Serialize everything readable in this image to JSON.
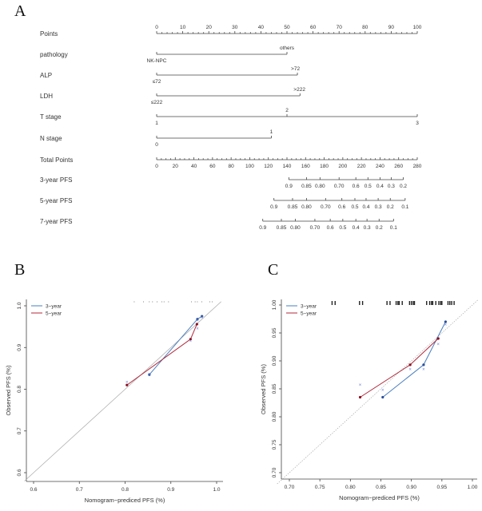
{
  "panels": {
    "a": "A",
    "b": "B",
    "c": "C"
  },
  "chart_data": [
    {
      "type": "nomogram",
      "points_axis": {
        "label": "Points",
        "min": 0,
        "max": 100,
        "ticks": [
          0,
          10,
          20,
          30,
          40,
          50,
          60,
          70,
          80,
          90,
          100
        ]
      },
      "variables": [
        {
          "label": "pathology",
          "levels": [
            {
              "name": "NK-NPC",
              "points": 0
            },
            {
              "name": "others",
              "points": 50
            }
          ]
        },
        {
          "label": "ALP",
          "levels": [
            {
              "name": "≤72",
              "points": 0
            },
            {
              "name": ">72",
              "points": 54
            }
          ]
        },
        {
          "label": "LDH",
          "levels": [
            {
              "name": "≤222",
              "points": 0
            },
            {
              "name": ">222",
              "points": 55
            }
          ]
        },
        {
          "label": "T stage",
          "levels": [
            {
              "name": "1",
              "points": 0
            },
            {
              "name": "2",
              "points": 50
            },
            {
              "name": "3",
              "points": 100
            }
          ]
        },
        {
          "label": "N stage",
          "levels": [
            {
              "name": "0",
              "points": 0
            },
            {
              "name": "1",
              "points": 44
            }
          ]
        }
      ],
      "total_points_axis": {
        "label": "Total Points",
        "min": 0,
        "max": 280,
        "ticks": [
          0,
          20,
          40,
          60,
          80,
          100,
          120,
          140,
          160,
          180,
          200,
          220,
          240,
          260,
          280
        ]
      },
      "outcome_axes": [
        {
          "label": "3-year PFS",
          "ticks": [
            {
              "value": "0.9",
              "total": 142
            },
            {
              "value": "0.85",
              "total": 161
            },
            {
              "value": "0.80",
              "total": 175.5
            },
            {
              "value": "0.70",
              "total": 196
            },
            {
              "value": "0.6",
              "total": 214
            },
            {
              "value": "0.5",
              "total": 227
            },
            {
              "value": "0.4",
              "total": 240
            },
            {
              "value": "0.3",
              "total": 252
            },
            {
              "value": "0.2",
              "total": 265
            }
          ]
        },
        {
          "label": "5-year PFS",
          "ticks": [
            {
              "value": "0.9",
              "total": 126
            },
            {
              "value": "0.85",
              "total": 146
            },
            {
              "value": "0.80",
              "total": 161
            },
            {
              "value": "0.70",
              "total": 181.5
            },
            {
              "value": "0.6",
              "total": 199
            },
            {
              "value": "0.5",
              "total": 213
            },
            {
              "value": "0.4",
              "total": 225
            },
            {
              "value": "0.3",
              "total": 238
            },
            {
              "value": "0.2",
              "total": 251
            },
            {
              "value": "0.1",
              "total": 267
            }
          ]
        },
        {
          "label": "7-year PFS",
          "ticks": [
            {
              "value": "0.9",
              "total": 114
            },
            {
              "value": "0.85",
              "total": 134
            },
            {
              "value": "0.80",
              "total": 149
            },
            {
              "value": "0.70",
              "total": 170
            },
            {
              "value": "0.6",
              "total": 186.5
            },
            {
              "value": "0.5",
              "total": 200
            },
            {
              "value": "0.4",
              "total": 214
            },
            {
              "value": "0.3",
              "total": 226
            },
            {
              "value": "0.2",
              "total": 239
            },
            {
              "value": "0.1",
              "total": 254.5
            }
          ]
        }
      ]
    },
    {
      "type": "line",
      "panel": "B",
      "xlabel": "Nomogram−prediced PFS (%)",
      "ylabel": "Observed PFS (%)",
      "xlim": [
        0.6,
        1.0
      ],
      "ylim": [
        0.6,
        1.0
      ],
      "xticks": [
        "0.6",
        "0.7",
        "0.8",
        "0.9",
        "1.0"
      ],
      "yticks": [
        "0.6",
        "0.7",
        "0.8",
        "0.9",
        "1.0"
      ],
      "legend": "top-left",
      "reference_line": "diagonal",
      "series": [
        {
          "name": "3−year",
          "color": "#4a7fc1",
          "x": [
            0.853,
            0.958,
            0.968
          ],
          "y": [
            0.835,
            0.968,
            0.975
          ],
          "corrected": [
            [
              0.853,
              0.836
            ],
            [
              0.958,
              0.966
            ],
            [
              0.968,
              0.972
            ]
          ]
        },
        {
          "name": "5−year",
          "color": "#b0283a",
          "x": [
            0.804,
            0.943,
            0.957
          ],
          "y": [
            0.81,
            0.92,
            0.956
          ],
          "corrected": [
            [
              0.804,
              0.817
            ],
            [
              0.943,
              0.916
            ],
            [
              0.958,
              0.945
            ]
          ]
        }
      ],
      "rug": [
        0.82,
        0.84,
        0.853,
        0.86,
        0.87,
        0.88,
        0.885,
        0.895,
        0.945,
        0.953,
        0.958,
        0.968,
        0.985,
        0.99
      ]
    },
    {
      "type": "line",
      "panel": "C",
      "xlabel": "Nomogram−prediced PFS (%)",
      "ylabel": "Observed PFS (%)",
      "xlim": [
        0.7,
        1.0
      ],
      "ylim": [
        0.7,
        1.0
      ],
      "xticks": [
        "0.70",
        "0.75",
        "0.80",
        "0.85",
        "0.90",
        "0.95",
        "1.00"
      ],
      "yticks": [
        "0.70",
        "0.75",
        "0.80",
        "0.85",
        "0.90",
        "0.95",
        "1.00"
      ],
      "legend": "top-left",
      "reference_line": "diagonal",
      "series": [
        {
          "name": "3−year",
          "color": "#4a7fc1",
          "x": [
            0.853,
            0.92,
            0.956
          ],
          "y": [
            0.835,
            0.893,
            0.97
          ],
          "corrected": [
            [
              0.853,
              0.848
            ],
            [
              0.92,
              0.885
            ],
            [
              0.956,
              0.965
            ]
          ]
        },
        {
          "name": "5−year",
          "color": "#b0283a",
          "x": [
            0.816,
            0.898,
            0.944
          ],
          "y": [
            0.835,
            0.893,
            0.94
          ],
          "corrected": [
            [
              0.816,
              0.857
            ],
            [
              0.898,
              0.885
            ],
            [
              0.944,
              0.93
            ]
          ]
        }
      ],
      "rug": [
        0.77,
        0.775,
        0.815,
        0.82,
        0.86,
        0.865,
        0.875,
        0.878,
        0.88,
        0.885,
        0.897,
        0.9,
        0.903,
        0.905,
        0.925,
        0.93,
        0.933,
        0.935,
        0.94,
        0.945,
        0.948,
        0.95,
        0.96,
        0.963,
        0.966,
        0.97
      ]
    }
  ]
}
